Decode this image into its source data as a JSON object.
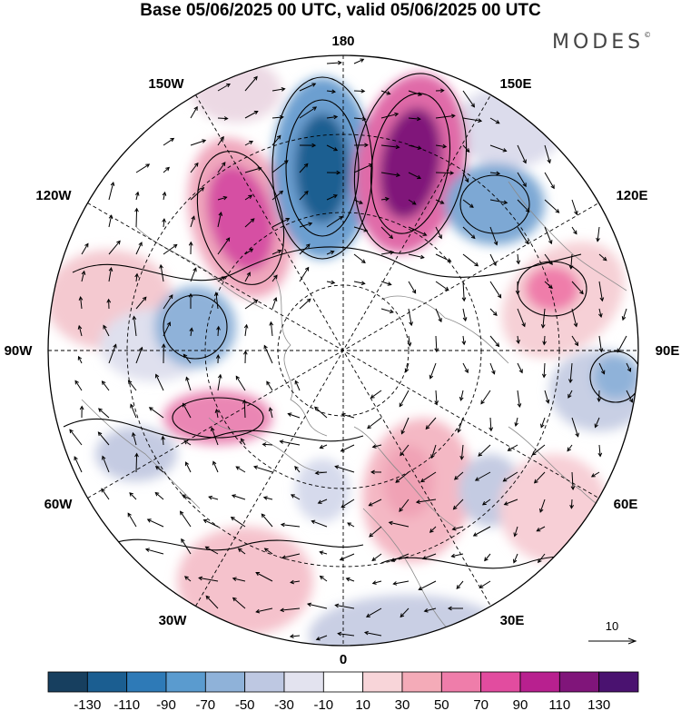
{
  "title": "Base 05/06/2025 00 UTC, valid 05/06/2025 00 UTC",
  "brand": "MODES",
  "brand_mark": "©",
  "longitude_labels": {
    "deg180": "180",
    "e150": "150E",
    "e120": "120E",
    "e90": "90E",
    "e60": "60E",
    "e30": "30E",
    "deg0": "0",
    "w30": "30W",
    "w60": "60W",
    "w90": "90W",
    "w120": "120W",
    "w150": "150W"
  },
  "vector_reference": "10",
  "colorbar": {
    "ticks": [
      "-130",
      "-110",
      "-90",
      "-70",
      "-50",
      "-30",
      "-10",
      "10",
      "30",
      "50",
      "70",
      "90",
      "110",
      "130"
    ],
    "colors": [
      "#173f5f",
      "#1b5e91",
      "#2e7ab7",
      "#5a9bcf",
      "#8fb2d9",
      "#bec8e2",
      "#e3e3ef",
      "#ffffff",
      "#f8d5d9",
      "#f4abb8",
      "#ef7daa",
      "#e24c9f",
      "#b8208f",
      "#80157a",
      "#4a1270"
    ]
  },
  "map": {
    "projection": "north-polar-stereographic",
    "field": "shaded anomaly with geopotential contours and wind vectors",
    "anomaly_centers": [
      {
        "sector": "near 180, west side",
        "sign": "negative",
        "peak": -130
      },
      {
        "sector": "near 170E",
        "sign": "positive",
        "peak": 130
      },
      {
        "sector": "near 135E",
        "sign": "negative",
        "peak": -70
      },
      {
        "sector": "near 140W",
        "sign": "positive",
        "peak": 90
      },
      {
        "sector": "near 110W",
        "sign": "negative",
        "peak": -50
      },
      {
        "sector": "near 105E",
        "sign": "positive",
        "peak": 50
      },
      {
        "sector": "near 90E",
        "sign": "negative",
        "peak": -50
      },
      {
        "sector": "near 75W",
        "sign": "positive",
        "peak": 70
      },
      {
        "sector": "near 20E",
        "sign": "positive",
        "peak": 50
      },
      {
        "sector": "near 30W",
        "sign": "positive",
        "peak": 50
      },
      {
        "sector": "near 15E",
        "sign": "negative",
        "peak": -30
      }
    ]
  }
}
